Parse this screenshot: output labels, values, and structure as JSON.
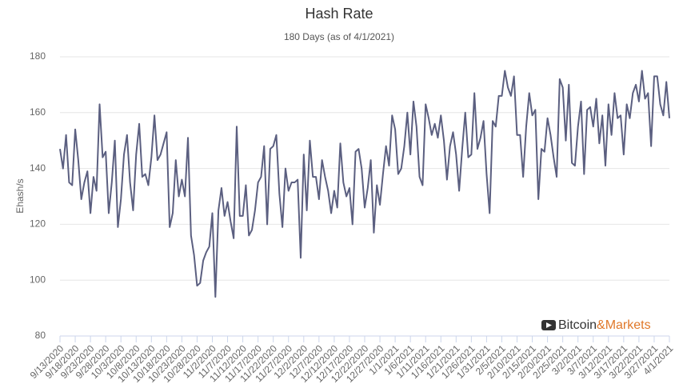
{
  "chart_data": {
    "type": "line",
    "title": "Hash Rate",
    "subtitle": "180 Days (as of 4/1/2021)",
    "y_label": "Ehash/s",
    "logo": [
      "Bitcoin",
      "&Markets"
    ],
    "color": "#5b5f80",
    "grid": true,
    "ylim": [
      80,
      180
    ],
    "yticks": [
      80,
      100,
      120,
      140,
      160,
      180
    ],
    "categories": [
      "9/13/2020",
      null,
      null,
      null,
      null,
      "9/18/2020",
      null,
      null,
      null,
      null,
      "9/23/2020",
      null,
      null,
      null,
      null,
      "9/28/2020",
      null,
      null,
      null,
      null,
      "10/3/2020",
      null,
      null,
      null,
      null,
      "10/8/2020",
      null,
      null,
      null,
      null,
      "10/13/2020",
      null,
      null,
      null,
      null,
      "10/18/2020",
      null,
      null,
      null,
      null,
      "10/23/2020",
      null,
      null,
      null,
      null,
      "10/28/2020",
      null,
      null,
      null,
      null,
      "11/2/2020",
      null,
      null,
      null,
      null,
      "11/7/2020",
      null,
      null,
      null,
      null,
      "11/12/2020",
      null,
      null,
      null,
      null,
      "11/17/2020",
      null,
      null,
      null,
      null,
      "11/22/2020",
      null,
      null,
      null,
      null,
      "11/27/2020",
      null,
      null,
      null,
      null,
      "12/2/2020",
      null,
      null,
      null,
      null,
      "12/7/2020",
      null,
      null,
      null,
      null,
      "12/12/2020",
      null,
      null,
      null,
      null,
      "12/17/2020",
      null,
      null,
      null,
      null,
      "12/22/2020",
      null,
      null,
      null,
      null,
      "12/27/2020",
      null,
      null,
      null,
      null,
      "1/1/2021",
      null,
      null,
      null,
      null,
      "1/6/2021",
      null,
      null,
      null,
      null,
      "1/11/2021",
      null,
      null,
      null,
      null,
      "1/16/2021",
      null,
      null,
      null,
      null,
      "1/21/2021",
      null,
      null,
      null,
      null,
      "1/26/2021",
      null,
      null,
      null,
      null,
      "1/31/2021",
      null,
      null,
      null,
      null,
      "2/5/2021",
      null,
      null,
      null,
      null,
      "2/10/2021",
      null,
      null,
      null,
      null,
      "2/15/2021",
      null,
      null,
      null,
      null,
      "2/20/2021",
      null,
      null,
      null,
      null,
      "2/25/2021",
      null,
      null,
      null,
      null,
      "3/2/2021",
      null,
      null,
      null,
      null,
      "3/7/2021",
      null,
      null,
      null,
      null,
      "3/12/2021",
      null,
      null,
      null,
      null,
      "3/17/2021",
      null,
      null,
      null,
      null,
      "3/22/2021",
      null,
      null,
      null,
      null,
      "3/27/2021",
      null,
      null,
      null,
      null,
      "4/1/2021"
    ],
    "values": [
      147,
      140,
      152,
      135,
      134,
      154,
      143,
      129,
      135,
      139,
      124,
      137,
      132,
      163,
      144,
      146,
      124,
      135,
      150,
      119,
      129,
      145,
      152,
      135,
      125,
      145,
      156,
      137,
      138,
      134,
      144,
      159,
      143,
      145,
      149,
      153,
      119,
      124,
      143,
      130,
      136,
      130,
      151,
      116,
      109,
      98,
      99,
      107,
      110,
      112,
      124,
      94,
      125,
      133,
      123,
      128,
      121,
      115,
      155,
      123,
      123,
      134,
      116,
      118,
      125,
      135,
      137,
      148,
      120,
      147,
      148,
      152,
      131,
      119,
      140,
      132,
      135,
      135,
      136,
      108,
      145,
      125,
      150,
      137,
      137,
      129,
      143,
      137,
      132,
      124,
      132,
      126,
      149,
      135,
      130,
      133,
      120,
      146,
      147,
      140,
      126,
      133,
      143,
      117,
      134,
      127,
      138,
      148,
      141,
      159,
      154,
      138,
      140,
      148,
      160,
      145,
      164,
      155,
      137,
      134,
      163,
      158,
      152,
      156,
      151,
      159,
      150,
      136,
      148,
      153,
      145,
      132,
      147,
      160,
      144,
      145,
      167,
      147,
      151,
      157,
      138,
      124,
      157,
      155,
      166,
      166,
      175,
      169,
      166,
      173,
      152,
      152,
      137,
      155,
      167,
      159,
      161,
      129,
      147,
      146,
      158,
      152,
      144,
      137,
      172,
      169,
      150,
      170,
      142,
      141,
      155,
      164,
      138,
      161,
      162,
      155,
      165,
      149,
      159,
      141,
      163,
      152,
      167,
      158,
      159,
      145,
      163,
      158,
      167,
      170,
      164,
      175,
      165,
      167,
      148,
      173,
      173,
      163,
      159,
      171,
      158
    ]
  }
}
